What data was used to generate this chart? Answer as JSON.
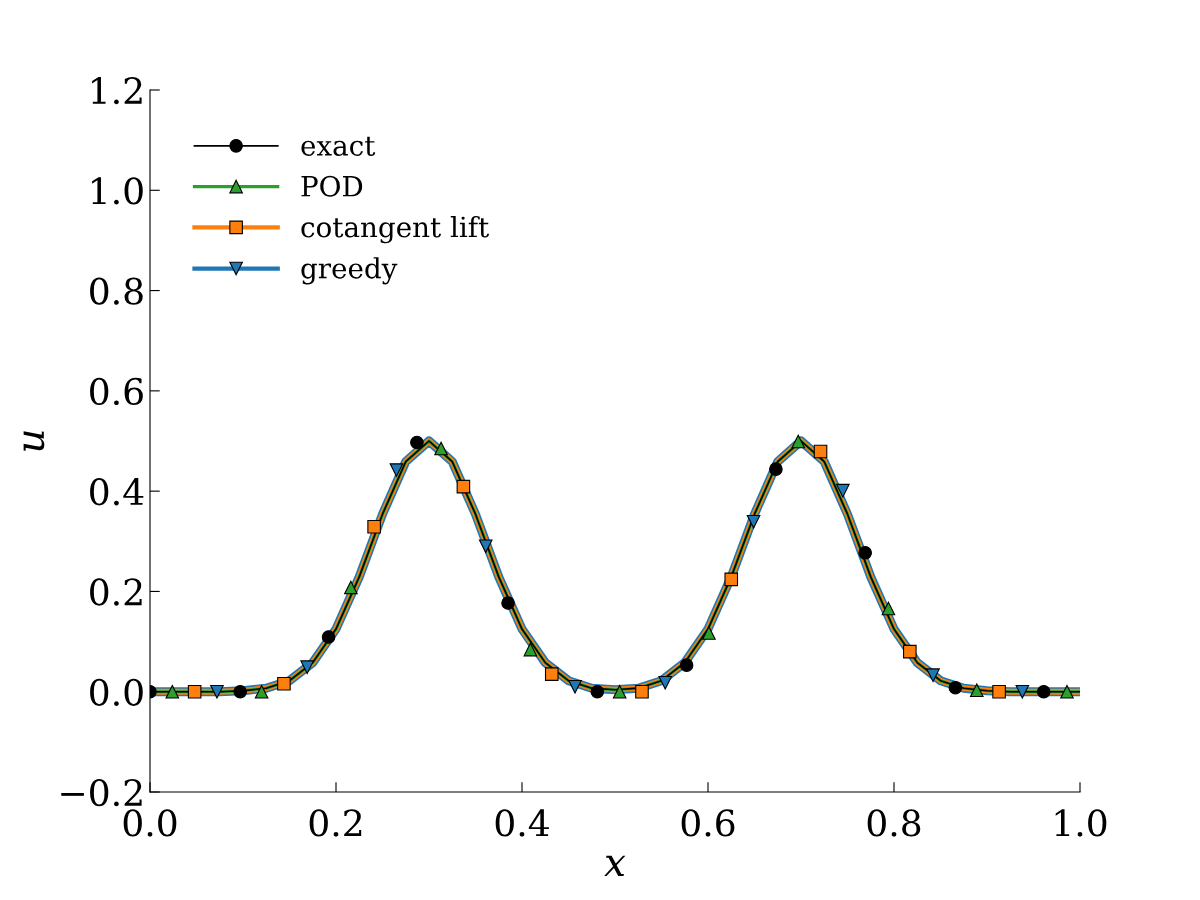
{
  "chart_data": {
    "type": "line",
    "xlabel": "x",
    "ylabel": "u",
    "xlim": [
      0.0,
      1.0
    ],
    "xticks": [
      {
        "value": 0,
        "label": "0.0"
      },
      0.2,
      0.4,
      0.6,
      0.8,
      {
        "value": 1,
        "label": "1.0"
      }
    ],
    "ylim": [
      -0.2,
      1.2
    ],
    "yticks": [
      {
        "value": -0.2,
        "label": "−0.2"
      },
      {
        "value": 0,
        "label": "0.0"
      },
      0.2,
      0.4,
      0.6,
      0.8,
      {
        "value": 1,
        "label": "1.0"
      },
      1.2
    ],
    "grid": false,
    "legend": "top left",
    "line_style": "solid",
    "x": [
      0,
      0.025,
      0.05,
      0.075,
      0.1,
      0.125,
      0.15,
      0.175,
      0.2,
      0.225,
      0.25,
      0.275,
      0.3,
      0.325,
      0.35,
      0.375,
      0.4,
      0.425,
      0.45,
      0.475,
      0.5,
      0.525,
      0.55,
      0.575,
      0.6,
      0.625,
      0.65,
      0.675,
      0.7,
      0.725,
      0.75,
      0.775,
      0.8,
      0.825,
      0.85,
      0.875,
      0.9,
      0.925,
      0.95,
      0.975,
      1.0
    ],
    "series": [
      {
        "name": "exact",
        "color": "#000000",
        "values": [
          0,
          0,
          0,
          0,
          0.002,
          0.007,
          0.022,
          0.058,
          0.125,
          0.229,
          0.354,
          0.459,
          0.5,
          0.459,
          0.354,
          0.229,
          0.125,
          0.058,
          0.022,
          0.007,
          0.004,
          0.007,
          0.022,
          0.058,
          0.125,
          0.229,
          0.354,
          0.459,
          0.5,
          0.459,
          0.354,
          0.229,
          0.125,
          0.058,
          0.022,
          0.007,
          0.002,
          0,
          0,
          0,
          0
        ]
      },
      {
        "name": "POD",
        "color": "#2ca02c",
        "values": [
          0,
          0,
          0,
          0,
          0.002,
          0.007,
          0.022,
          0.058,
          0.125,
          0.229,
          0.354,
          0.459,
          0.5,
          0.459,
          0.354,
          0.229,
          0.125,
          0.058,
          0.022,
          0.007,
          0.004,
          0.007,
          0.022,
          0.058,
          0.125,
          0.229,
          0.354,
          0.459,
          0.5,
          0.459,
          0.354,
          0.229,
          0.125,
          0.058,
          0.022,
          0.007,
          0.002,
          0,
          0,
          0,
          0
        ]
      },
      {
        "name": "cotangent lift",
        "color": "#ff7f0e",
        "values": [
          0,
          0,
          0,
          0,
          0.002,
          0.007,
          0.022,
          0.058,
          0.125,
          0.229,
          0.354,
          0.459,
          0.5,
          0.459,
          0.354,
          0.229,
          0.125,
          0.058,
          0.022,
          0.007,
          0.004,
          0.007,
          0.022,
          0.058,
          0.125,
          0.229,
          0.354,
          0.459,
          0.5,
          0.459,
          0.354,
          0.229,
          0.125,
          0.058,
          0.022,
          0.007,
          0.002,
          0,
          0,
          0,
          0
        ]
      },
      {
        "name": "greedy",
        "color": "#1f77b4",
        "values": [
          0,
          0,
          0,
          0,
          0.002,
          0.007,
          0.022,
          0.058,
          0.125,
          0.229,
          0.354,
          0.459,
          0.5,
          0.459,
          0.354,
          0.229,
          0.125,
          0.058,
          0.022,
          0.007,
          0.004,
          0.007,
          0.022,
          0.058,
          0.125,
          0.229,
          0.354,
          0.459,
          0.5,
          0.459,
          0.354,
          0.229,
          0.125,
          0.058,
          0.022,
          0.007,
          0.002,
          0,
          0,
          0,
          0
        ]
      },
      {
        "type": "scatter",
        "color": "#000000",
        "marker": "circle",
        "x": [
          0,
          0.097,
          0.192,
          0.287,
          0.385,
          0.481,
          0.577,
          0.673,
          0.769,
          0.866,
          0.961
        ],
        "values": [
          0,
          0,
          0.109,
          0.497,
          0.177,
          0,
          0.053,
          0.444,
          0.277,
          0.008,
          0
        ]
      },
      {
        "type": "scatter",
        "color": "#2ca02c",
        "marker": "triangle",
        "x": [
          0.024,
          0.12,
          0.216,
          0.313,
          0.409,
          0.505,
          0.601,
          0.697,
          0.794,
          0.889,
          0.986
        ],
        "values": [
          0,
          0,
          0.208,
          0.485,
          0.084,
          0,
          0.117,
          0.499,
          0.166,
          0.003,
          0
        ]
      },
      {
        "type": "scatter",
        "color": "#ff7f0e",
        "marker": "square",
        "x": [
          0.048,
          0.144,
          0.241,
          0.337,
          0.432,
          0.529,
          0.625,
          0.721,
          0.817,
          0.913
        ],
        "values": [
          0,
          0.016,
          0.329,
          0.409,
          0.035,
          0,
          0.224,
          0.479,
          0.08,
          0
        ]
      },
      {
        "type": "scatter",
        "color": "#1f77b4",
        "marker": "triangle_down",
        "x": [
          0.072,
          0.169,
          0.265,
          0.361,
          0.457,
          0.554,
          0.649,
          0.745,
          0.842,
          0.938
        ],
        "values": [
          0,
          0.049,
          0.442,
          0.29,
          0.01,
          0.018,
          0.339,
          0.401,
          0.033,
          0
        ]
      }
    ]
  }
}
